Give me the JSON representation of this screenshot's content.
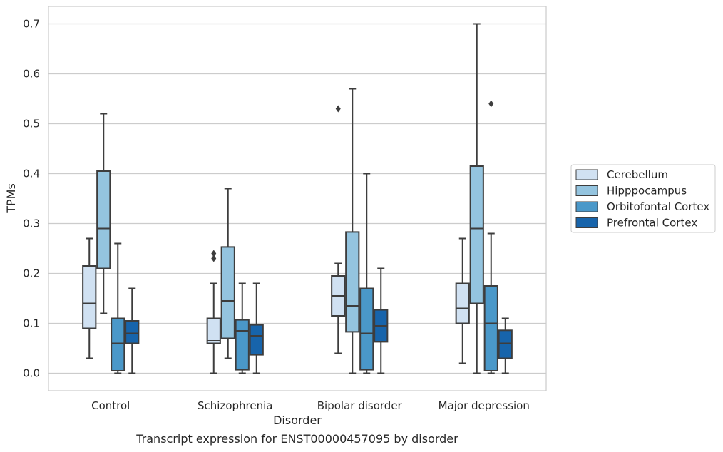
{
  "chart_data": {
    "type": "box",
    "xlabel": "Disorder",
    "ylabel": "TPMs",
    "caption": "Transcript expression for ENST00000457095 by disorder",
    "categories": [
      "Control",
      "Schizophrenia",
      "Bipolar disorder",
      "Major depression"
    ],
    "ylim": [
      -0.035,
      0.735
    ],
    "yticks": [
      0.0,
      0.1,
      0.2,
      0.3,
      0.4,
      0.5,
      0.6,
      0.7
    ],
    "ytick_labels": [
      "0.0",
      "0.1",
      "0.2",
      "0.3",
      "0.4",
      "0.5",
      "0.6",
      "0.7"
    ],
    "grid": true,
    "legend_position": "right",
    "series": [
      {
        "name": "Cerebellum",
        "color": "#d0e1f2",
        "boxes": [
          {
            "whislo": 0.03,
            "q1": 0.09,
            "med": 0.14,
            "q3": 0.215,
            "whishi": 0.27,
            "fliers": []
          },
          {
            "whislo": 0.0,
            "q1": 0.06,
            "med": 0.065,
            "q3": 0.11,
            "whishi": 0.18,
            "fliers": [
              0.23,
              0.24
            ]
          },
          {
            "whislo": 0.04,
            "q1": 0.115,
            "med": 0.155,
            "q3": 0.195,
            "whishi": 0.22,
            "fliers": [
              0.53
            ]
          },
          {
            "whislo": 0.02,
            "q1": 0.1,
            "med": 0.13,
            "q3": 0.18,
            "whishi": 0.27,
            "fliers": []
          }
        ]
      },
      {
        "name": "Hipppocampus",
        "color": "#94c4df",
        "boxes": [
          {
            "whislo": 0.12,
            "q1": 0.21,
            "med": 0.29,
            "q3": 0.405,
            "whishi": 0.52,
            "fliers": []
          },
          {
            "whislo": 0.03,
            "q1": 0.07,
            "med": 0.145,
            "q3": 0.253,
            "whishi": 0.37,
            "fliers": []
          },
          {
            "whislo": 0.0,
            "q1": 0.083,
            "med": 0.135,
            "q3": 0.283,
            "whishi": 0.57,
            "fliers": []
          },
          {
            "whislo": 0.0,
            "q1": 0.14,
            "med": 0.29,
            "q3": 0.415,
            "whishi": 0.7,
            "fliers": []
          }
        ]
      },
      {
        "name": "Orbitofontal Cortex",
        "color": "#4a98c9",
        "boxes": [
          {
            "whislo": 0.0,
            "q1": 0.005,
            "med": 0.06,
            "q3": 0.11,
            "whishi": 0.26,
            "fliers": []
          },
          {
            "whislo": 0.0,
            "q1": 0.007,
            "med": 0.085,
            "q3": 0.107,
            "whishi": 0.18,
            "fliers": []
          },
          {
            "whislo": 0.0,
            "q1": 0.007,
            "med": 0.08,
            "q3": 0.17,
            "whishi": 0.4,
            "fliers": []
          },
          {
            "whislo": 0.0,
            "q1": 0.005,
            "med": 0.1,
            "q3": 0.175,
            "whishi": 0.28,
            "fliers": [
              0.54
            ]
          }
        ]
      },
      {
        "name": "Prefrontal Cortex",
        "color": "#1764ab",
        "boxes": [
          {
            "whislo": 0.0,
            "q1": 0.06,
            "med": 0.08,
            "q3": 0.105,
            "whishi": 0.17,
            "fliers": []
          },
          {
            "whislo": 0.0,
            "q1": 0.037,
            "med": 0.075,
            "q3": 0.097,
            "whishi": 0.18,
            "fliers": []
          },
          {
            "whislo": 0.0,
            "q1": 0.063,
            "med": 0.095,
            "q3": 0.127,
            "whishi": 0.21,
            "fliers": []
          },
          {
            "whislo": 0.0,
            "q1": 0.03,
            "med": 0.06,
            "q3": 0.086,
            "whishi": 0.11,
            "fliers": []
          }
        ]
      }
    ]
  }
}
